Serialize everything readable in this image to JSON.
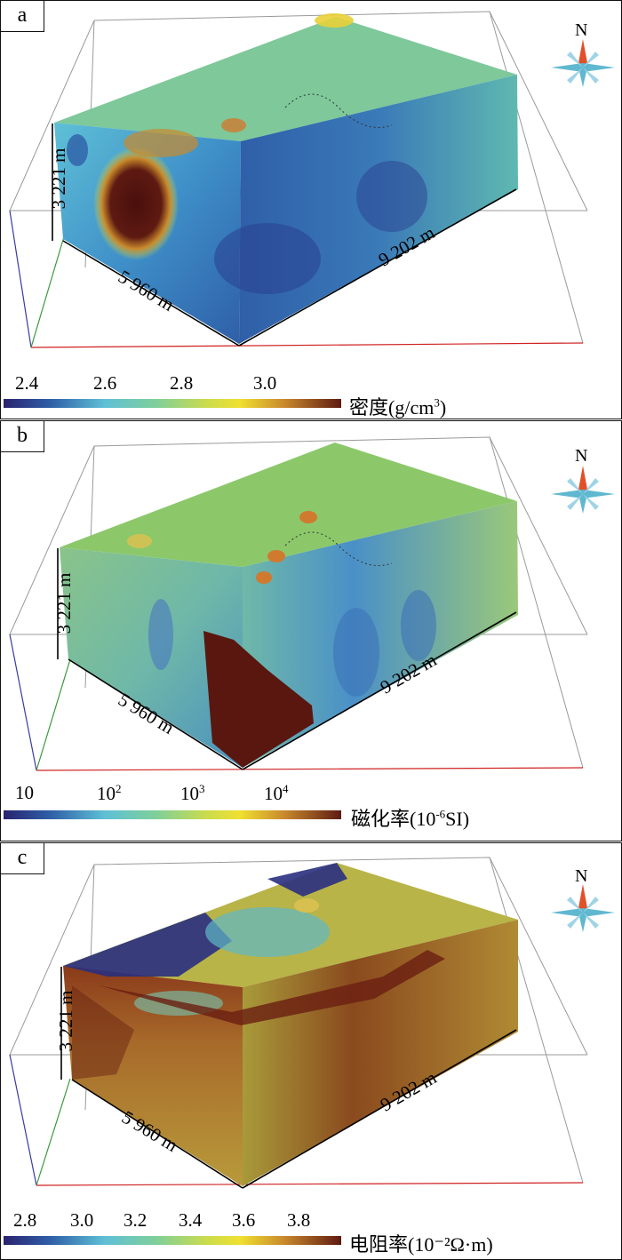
{
  "panels": [
    {
      "label": "a",
      "depth_label": "3 221 m",
      "width_label": "5 960 m",
      "length_label": "9 202 m",
      "north_label": "N",
      "colorbar": {
        "ticks": [
          "2.4",
          "2.6",
          "2.8",
          "3.0"
        ],
        "title": "密度(g/cm",
        "title_sup": "3",
        "title_end": ")"
      }
    },
    {
      "label": "b",
      "depth_label": "3 221 m",
      "width_label": "5 960 m",
      "length_label": "9 202 m",
      "north_label": "N",
      "colorbar": {
        "ticks": [
          {
            "base": "10",
            "exp": ""
          },
          {
            "base": "10",
            "exp": "2"
          },
          {
            "base": "10",
            "exp": "3"
          },
          {
            "base": "10",
            "exp": "4"
          }
        ],
        "title": "磁化率(10",
        "title_sup": "-6",
        "title_end": "SI)"
      }
    },
    {
      "label": "c",
      "depth_label": "3 221 m",
      "width_label": "5 960 m",
      "length_label": "9 202 m",
      "north_label": "N",
      "colorbar": {
        "ticks": [
          "2.8",
          "3.0",
          "3.2",
          "3.4",
          "3.6",
          "3.8"
        ],
        "title": "电阻率(10⁻²Ω·m)",
        "title_sup": "",
        "title_end": ""
      }
    }
  ],
  "colormap": [
    "#2a2370",
    "#2f5fa8",
    "#5fc0d6",
    "#7ecf9a",
    "#c9dc4e",
    "#f0e030",
    "#c98a2c",
    "#5e1a12"
  ]
}
